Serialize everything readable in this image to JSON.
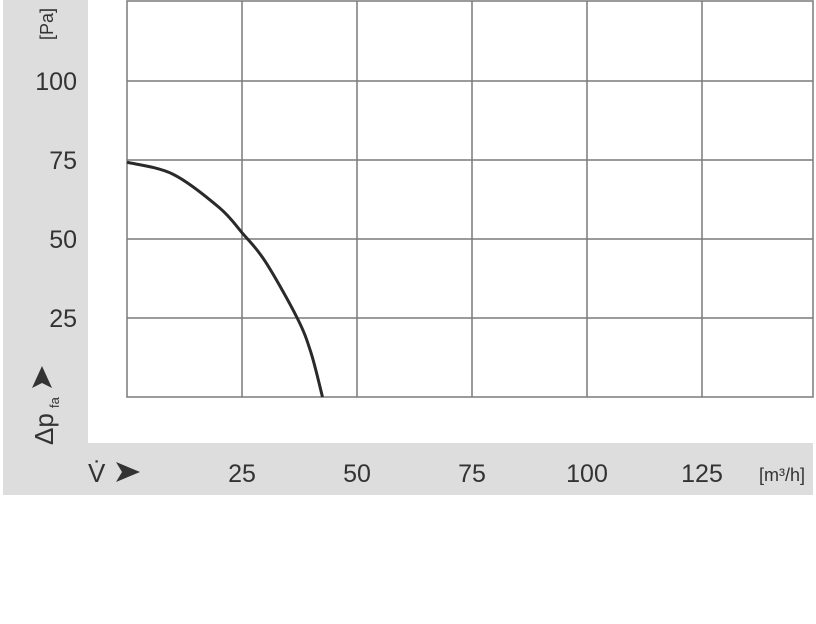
{
  "chart_data": {
    "type": "line",
    "xlabel": "V̇",
    "xunit": "[m³/h]",
    "ylabel": "Δp",
    "ylabel_sub": "fa",
    "yunit": "[Pa]",
    "xlim": [
      0,
      120
    ],
    "ylim": [
      0,
      125
    ],
    "xticks": [
      25,
      50,
      75,
      100,
      125
    ],
    "yticks": [
      25,
      50,
      75,
      100
    ],
    "grid": true,
    "series": [
      {
        "x": [
          0,
          10,
          20,
          25,
          30,
          37,
          40,
          42.5
        ],
        "y": [
          74.3,
          70.5,
          60,
          52,
          43,
          25,
          14,
          0
        ]
      }
    ],
    "colors": {
      "background_band": "#dddddd",
      "grid": "#7a7a7a",
      "curve": "#2a2a2a",
      "text": "#333333"
    }
  }
}
